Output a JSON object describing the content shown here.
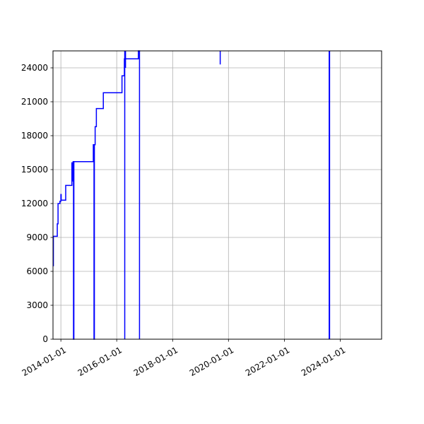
{
  "chart_data": {
    "type": "line",
    "title": "",
    "xlabel": "",
    "ylabel": "",
    "x_axis_type": "date",
    "xlim": [
      "2013-09-20",
      "2025-06-25"
    ],
    "ylim": [
      0,
      25500
    ],
    "grid": true,
    "legend": "none",
    "y_ticks": [
      0,
      3000,
      6000,
      9000,
      12000,
      15000,
      18000,
      21000,
      24000
    ],
    "y_tick_labels": [
      "0",
      "3000",
      "6000",
      "9000",
      "12000",
      "15000",
      "18000",
      "21000",
      "24000"
    ],
    "x_ticks": [
      "2014-01-01",
      "2016-01-01",
      "2018-01-01",
      "2020-01-01",
      "2022-01-01",
      "2024-01-01"
    ],
    "x_tick_labels": [
      "2014-01-01",
      "2016-01-01",
      "2018-01-01",
      "2020-01-01",
      "2022-01-01",
      "2024-01-01"
    ],
    "series": [
      {
        "color": "#0000ff",
        "points": [
          [
            "2013-09-20",
            6500
          ],
          [
            "2013-09-25",
            9100
          ],
          [
            "2013-10-20",
            9100
          ],
          [
            "2013-11-10",
            9100
          ],
          [
            "2013-11-15",
            10200
          ],
          [
            "2013-11-25",
            12000
          ],
          [
            "2013-12-20",
            12200
          ],
          [
            "2014-01-01",
            12800
          ],
          [
            "2014-01-05",
            12300
          ],
          [
            "2014-03-01",
            12300
          ],
          [
            "2014-03-05",
            13600
          ],
          [
            "2014-05-20",
            13600
          ],
          [
            "2014-05-25",
            15600
          ],
          [
            "2014-06-01",
            14000
          ],
          [
            "2014-06-10",
            15700
          ],
          [
            "2014-06-15",
            0
          ],
          [
            "2014-06-20",
            15700
          ],
          [
            "2015-02-20",
            15700
          ],
          [
            "2015-03-01",
            17200
          ],
          [
            "2015-03-10",
            0
          ],
          [
            "2015-03-15",
            17200
          ],
          [
            "2015-03-25",
            18800
          ],
          [
            "2015-04-10",
            20400
          ],
          [
            "2015-07-01",
            20400
          ],
          [
            "2015-07-10",
            21800
          ],
          [
            "2016-03-01",
            21800
          ],
          [
            "2016-03-10",
            23300
          ],
          [
            "2016-04-10",
            24800
          ],
          [
            "2016-10-01",
            24800
          ],
          [
            "2016-10-10",
            25500
          ],
          [
            "2016-10-20",
            25500
          ],
          [
            "2016-10-21",
            25500
          ],
          [
            "2016-10-22",
            25500
          ],
          [
            "2016-10-25",
            0
          ]
        ]
      }
    ],
    "spikes": [
      {
        "x": "2016-04-15",
        "low": 0,
        "high": 25500
      },
      {
        "x": "2016-04-25",
        "low": 24000,
        "high": 25500
      },
      {
        "x": "2019-09-15",
        "low": 24300,
        "high": 25500
      },
      {
        "x": "2023-08-10",
        "low": 0,
        "high": 25500
      },
      {
        "x": "2023-08-15",
        "low": 0,
        "high": 25500
      }
    ]
  }
}
